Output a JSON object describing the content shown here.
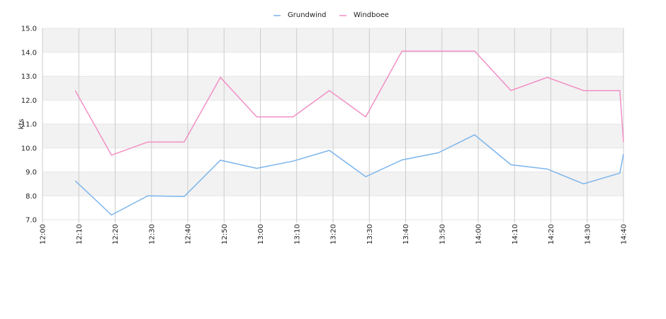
{
  "chart_data": {
    "type": "line",
    "ylabel": "kts",
    "x": [
      "12:09",
      "12:19",
      "12:29",
      "12:39",
      "12:49",
      "12:59",
      "13:09",
      "13:19",
      "13:29",
      "13:39",
      "13:49",
      "13:59",
      "14:09",
      "14:19",
      "14:29",
      "14:39",
      "14:40"
    ],
    "series": [
      {
        "name": "Grundwind",
        "color": "#7cb5ec",
        "values": [
          8.63,
          7.2,
          8.0,
          7.97,
          9.49,
          9.15,
          9.45,
          9.9,
          8.8,
          9.5,
          9.8,
          10.55,
          9.3,
          9.12,
          8.5,
          8.95,
          9.75
        ]
      },
      {
        "name": "Windboee",
        "color": "#f190c4",
        "values": [
          12.4,
          9.7,
          10.25,
          10.25,
          12.95,
          11.3,
          11.3,
          12.4,
          11.3,
          14.05,
          14.05,
          14.05,
          12.4,
          12.95,
          12.4,
          12.4,
          10.25
        ]
      }
    ],
    "xlim": [
      "12:00",
      "14:40"
    ],
    "xticks": [
      "12:00",
      "12:10",
      "12:20",
      "12:30",
      "12:40",
      "12:50",
      "13:00",
      "13:10",
      "13:20",
      "13:30",
      "13:40",
      "13:50",
      "14:00",
      "14:10",
      "14:20",
      "14:30",
      "14:40"
    ],
    "ylim": [
      7,
      15
    ],
    "yticks": [
      {
        "value": 7,
        "label": "7.0"
      },
      {
        "value": 8,
        "label": "8.0"
      },
      {
        "value": 9,
        "label": "9.0"
      },
      {
        "value": 10,
        "label": "10.0"
      },
      {
        "value": 11,
        "label": "11.0"
      },
      {
        "value": 12,
        "label": "12.0"
      },
      {
        "value": 13,
        "label": "13.0"
      },
      {
        "value": 14,
        "label": "14.0"
      },
      {
        "value": 15,
        "label": "15.0"
      }
    ],
    "grid": true,
    "legend": "top"
  }
}
